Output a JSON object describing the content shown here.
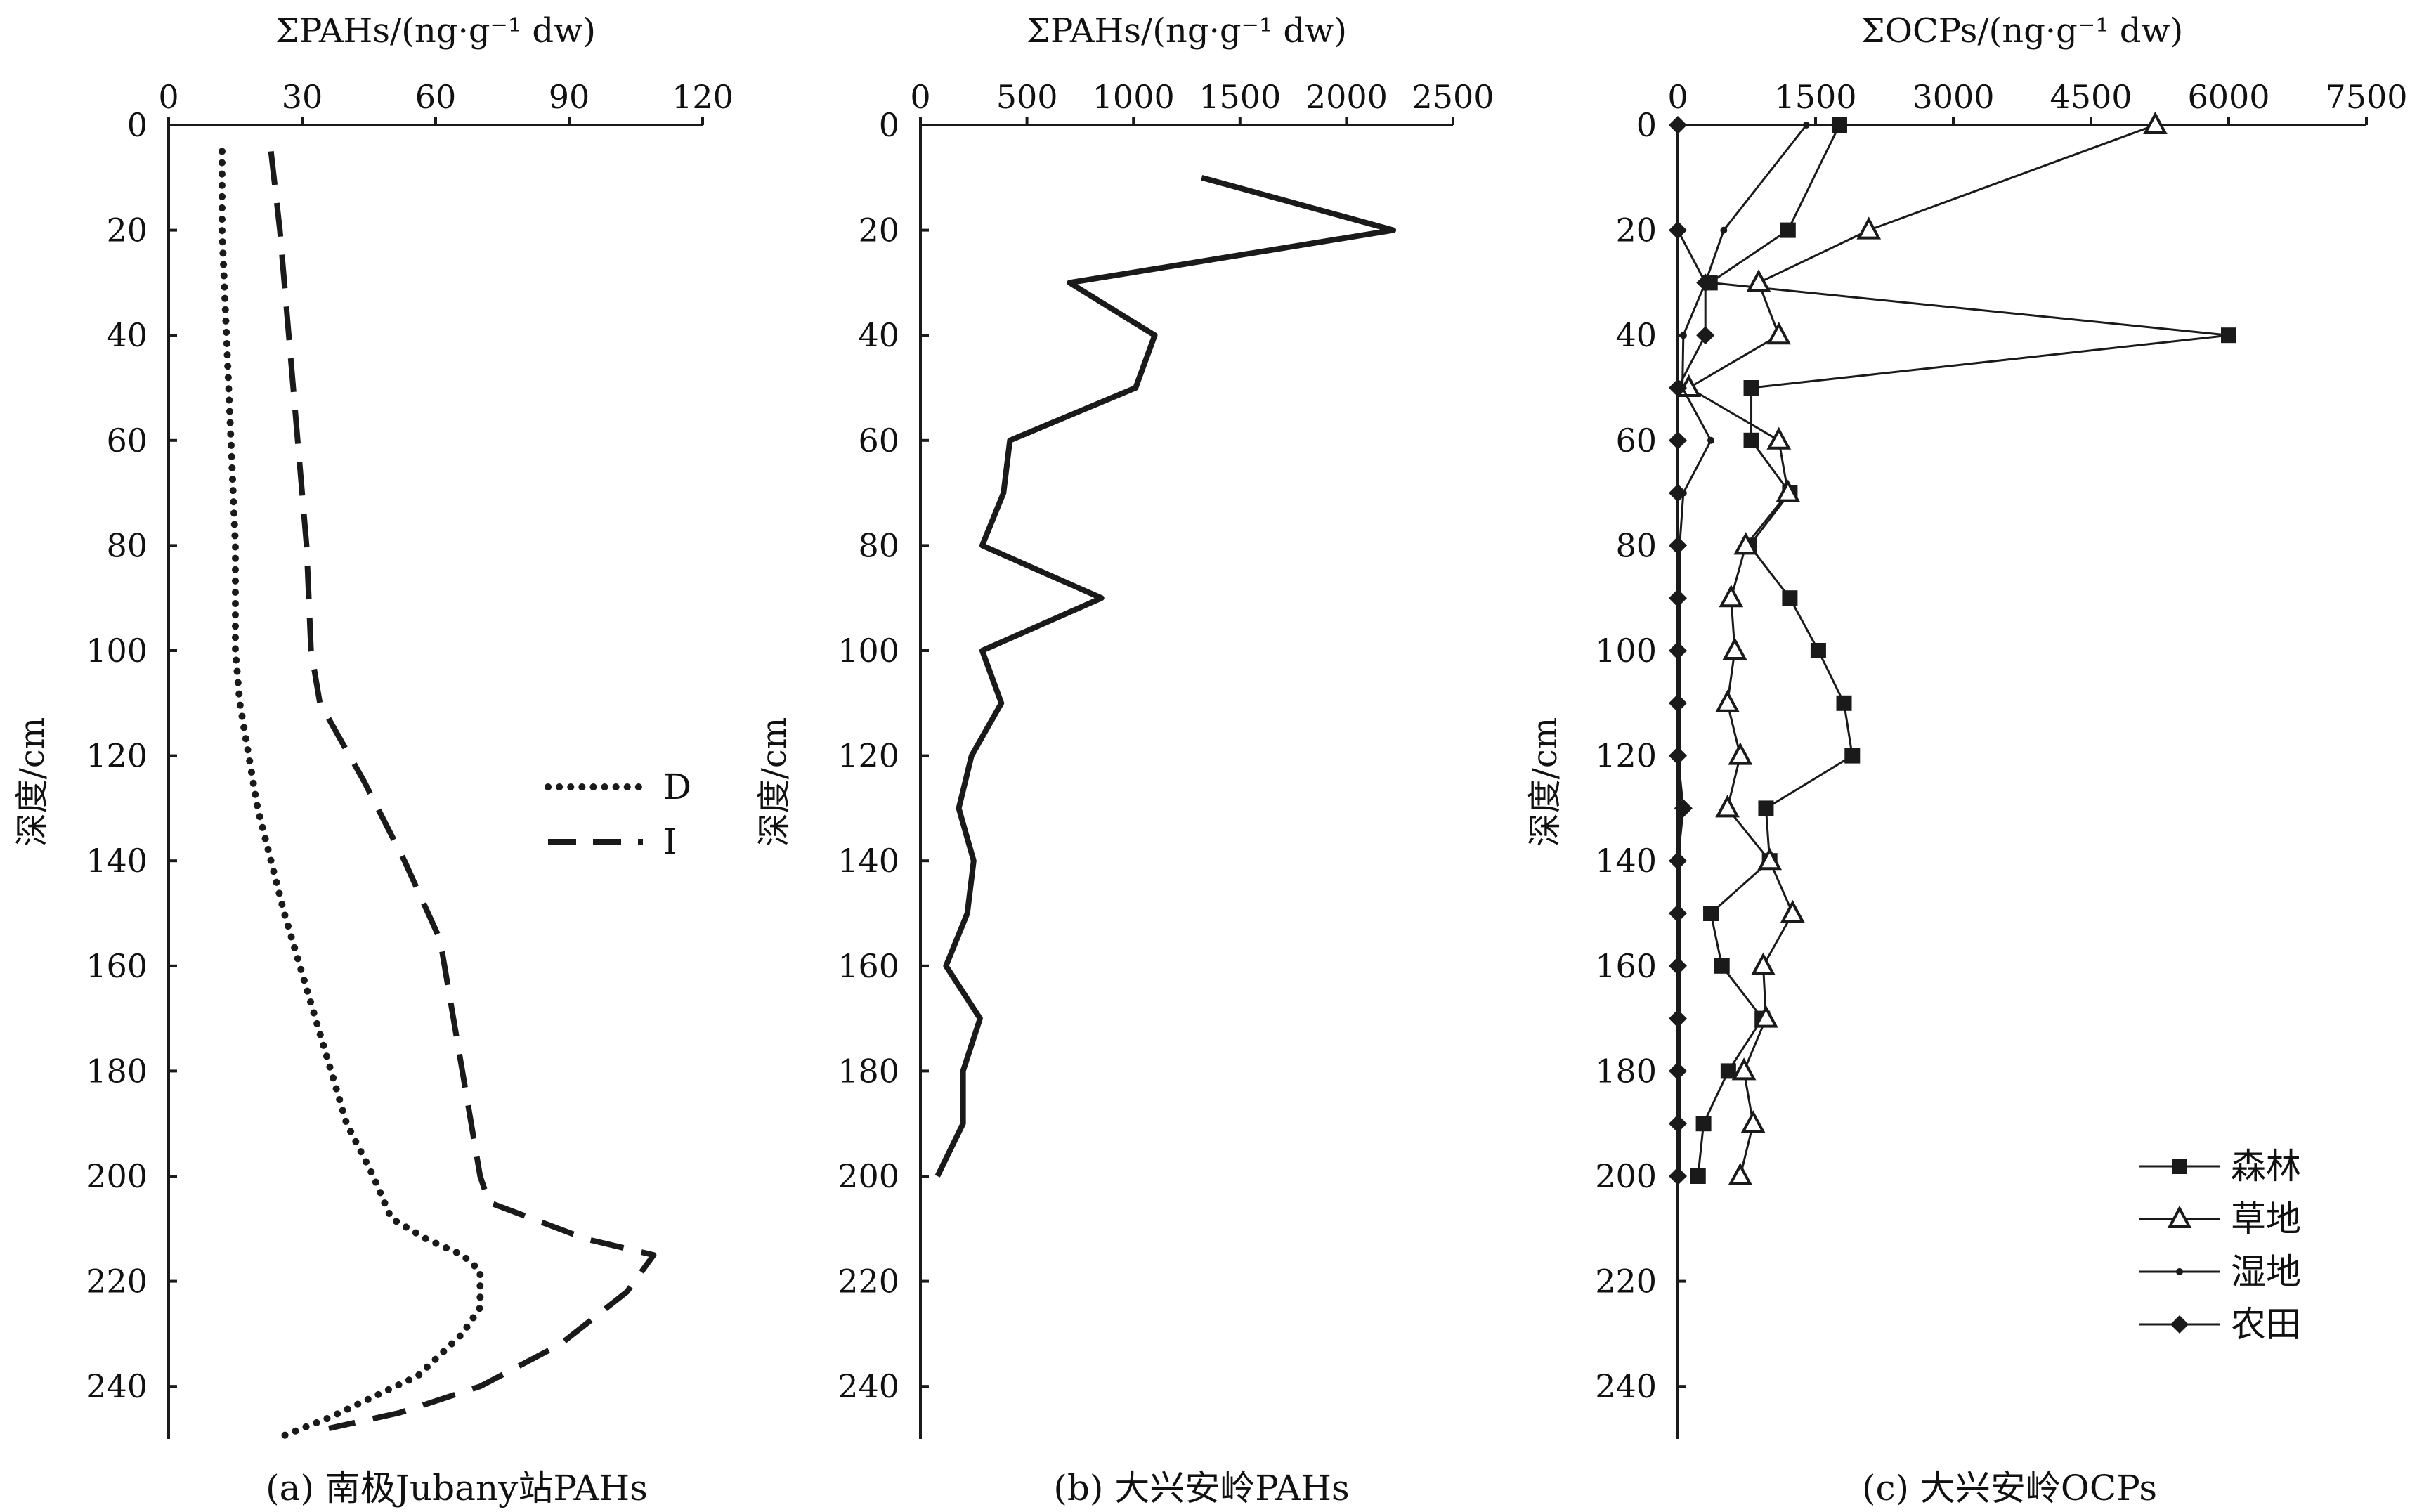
{
  "chart_data": [
    {
      "type": "line",
      "caption": "(a) 南极Jubany站PAHs",
      "xlabel": "ΣPAHs/(ng·g⁻¹ dw)",
      "ylabel": "深度/cm",
      "xlim": [
        0,
        120
      ],
      "ylim": [
        0,
        250
      ],
      "x_ticks": [
        "0",
        "30",
        "60",
        "90",
        "120"
      ],
      "y_ticks": [
        "0",
        "20",
        "40",
        "60",
        "80",
        "100",
        "120",
        "140",
        "160",
        "180",
        "200",
        "220",
        "240"
      ],
      "legend": "right",
      "series": [
        {
          "name": "D",
          "style": "dotted",
          "points": [
            [
              12,
              5
            ],
            [
              12,
              20
            ],
            [
              13,
              40
            ],
            [
              14,
              60
            ],
            [
              15,
              80
            ],
            [
              15,
              100
            ],
            [
              16,
              110
            ],
            [
              20,
              130
            ],
            [
              26,
              150
            ],
            [
              33,
              170
            ],
            [
              40,
              190
            ],
            [
              46,
              200
            ],
            [
              50,
              208
            ],
            [
              58,
              212
            ],
            [
              66,
              215
            ],
            [
              70,
              218
            ],
            [
              70,
              225
            ],
            [
              66,
              230
            ],
            [
              56,
              238
            ],
            [
              46,
              242
            ],
            [
              36,
              246
            ],
            [
              24,
              250
            ]
          ]
        },
        {
          "name": "I",
          "style": "dashed",
          "points": [
            [
              23,
              5
            ],
            [
              25,
              20
            ],
            [
              27,
              40
            ],
            [
              29,
              60
            ],
            [
              31,
              80
            ],
            [
              32,
              100
            ],
            [
              34,
              110
            ],
            [
              44,
              125
            ],
            [
              53,
              140
            ],
            [
              61,
              155
            ],
            [
              64,
              170
            ],
            [
              67,
              185
            ],
            [
              70,
              200
            ],
            [
              72,
              205
            ],
            [
              94,
              212
            ],
            [
              109,
              215
            ],
            [
              103,
              222
            ],
            [
              88,
              232
            ],
            [
              70,
              240
            ],
            [
              52,
              245
            ],
            [
              36,
              248
            ]
          ]
        }
      ]
    },
    {
      "type": "line",
      "caption": "(b) 大兴安岭PAHs",
      "xlabel": "ΣPAHs/(ng·g⁻¹ dw)",
      "ylabel": "深度/cm",
      "xlim": [
        0,
        2500
      ],
      "ylim": [
        0,
        250
      ],
      "x_ticks": [
        "0",
        "500",
        "1000",
        "1500",
        "2000",
        "2500"
      ],
      "y_ticks": [
        "0",
        "20",
        "40",
        "60",
        "80",
        "100",
        "120",
        "140",
        "160",
        "180",
        "200",
        "220",
        "240"
      ],
      "series": [
        {
          "name": "",
          "style": "solid",
          "points": [
            [
              1320,
              10
            ],
            [
              2220,
              20
            ],
            [
              700,
              30
            ],
            [
              1100,
              40
            ],
            [
              1010,
              50
            ],
            [
              420,
              60
            ],
            [
              390,
              70
            ],
            [
              290,
              80
            ],
            [
              850,
              90
            ],
            [
              290,
              100
            ],
            [
              380,
              110
            ],
            [
              240,
              120
            ],
            [
              180,
              130
            ],
            [
              250,
              140
            ],
            [
              220,
              150
            ],
            [
              120,
              160
            ],
            [
              280,
              170
            ],
            [
              200,
              180
            ],
            [
              200,
              190
            ],
            [
              80,
              200
            ]
          ]
        }
      ]
    },
    {
      "type": "line",
      "caption": "(c) 大兴安岭OCPs",
      "xlabel": "ΣOCPs/(ng·g⁻¹ dw)",
      "ylabel": "深度/cm",
      "xlim": [
        0,
        7500
      ],
      "ylim": [
        0,
        250
      ],
      "x_ticks": [
        "0",
        "1500",
        "3000",
        "4500",
        "6000",
        "7500"
      ],
      "y_ticks": [
        "0",
        "20",
        "40",
        "60",
        "80",
        "100",
        "120",
        "140",
        "160",
        "180",
        "200",
        "220",
        "240"
      ],
      "legend": "bottom-right",
      "series": [
        {
          "name": "森林",
          "marker": "square",
          "points": [
            [
              1760,
              0
            ],
            [
              1200,
              20
            ],
            [
              350,
              30
            ],
            [
              6000,
              40
            ],
            [
              800,
              50
            ],
            [
              800,
              60
            ],
            [
              1220,
              70
            ],
            [
              780,
              80
            ],
            [
              1220,
              90
            ],
            [
              1530,
              100
            ],
            [
              1810,
              110
            ],
            [
              1900,
              120
            ],
            [
              960,
              130
            ],
            [
              1000,
              140
            ],
            [
              360,
              150
            ],
            [
              480,
              160
            ],
            [
              920,
              170
            ],
            [
              550,
              180
            ],
            [
              280,
              190
            ],
            [
              220,
              200
            ]
          ]
        },
        {
          "name": "草地",
          "marker": "triangle",
          "points": [
            [
              5200,
              0
            ],
            [
              2080,
              20
            ],
            [
              880,
              30
            ],
            [
              1100,
              40
            ],
            [
              120,
              50
            ],
            [
              1100,
              60
            ],
            [
              1200,
              70
            ],
            [
              740,
              80
            ],
            [
              580,
              90
            ],
            [
              620,
              100
            ],
            [
              540,
              110
            ],
            [
              680,
              120
            ],
            [
              540,
              130
            ],
            [
              1000,
              140
            ],
            [
              1250,
              150
            ],
            [
              930,
              160
            ],
            [
              960,
              170
            ],
            [
              720,
              180
            ],
            [
              820,
              190
            ],
            [
              680,
              200
            ]
          ]
        },
        {
          "name": "湿地",
          "marker": "dot",
          "points": [
            [
              1400,
              0
            ],
            [
              500,
              20
            ],
            [
              300,
              30
            ],
            [
              60,
              40
            ],
            [
              50,
              50
            ],
            [
              360,
              60
            ],
            [
              60,
              70
            ],
            [
              20,
              80
            ],
            [
              20,
              90
            ],
            [
              20,
              100
            ],
            [
              20,
              110
            ],
            [
              20,
              120
            ],
            [
              20,
              130
            ],
            [
              20,
              140
            ],
            [
              20,
              150
            ],
            [
              20,
              160
            ],
            [
              20,
              170
            ],
            [
              20,
              180
            ],
            [
              20,
              190
            ],
            [
              20,
              200
            ]
          ]
        },
        {
          "name": "农田",
          "marker": "diamond",
          "points": [
            [
              0,
              0
            ],
            [
              0,
              20
            ],
            [
              300,
              30
            ],
            [
              300,
              40
            ],
            [
              0,
              50
            ],
            [
              0,
              60
            ],
            [
              0,
              70
            ],
            [
              0,
              80
            ],
            [
              0,
              90
            ],
            [
              0,
              100
            ],
            [
              0,
              110
            ],
            [
              0,
              120
            ],
            [
              60,
              130
            ],
            [
              0,
              140
            ],
            [
              0,
              150
            ],
            [
              0,
              160
            ],
            [
              0,
              170
            ],
            [
              0,
              180
            ],
            [
              0,
              190
            ],
            [
              0,
              200
            ]
          ]
        }
      ]
    }
  ]
}
